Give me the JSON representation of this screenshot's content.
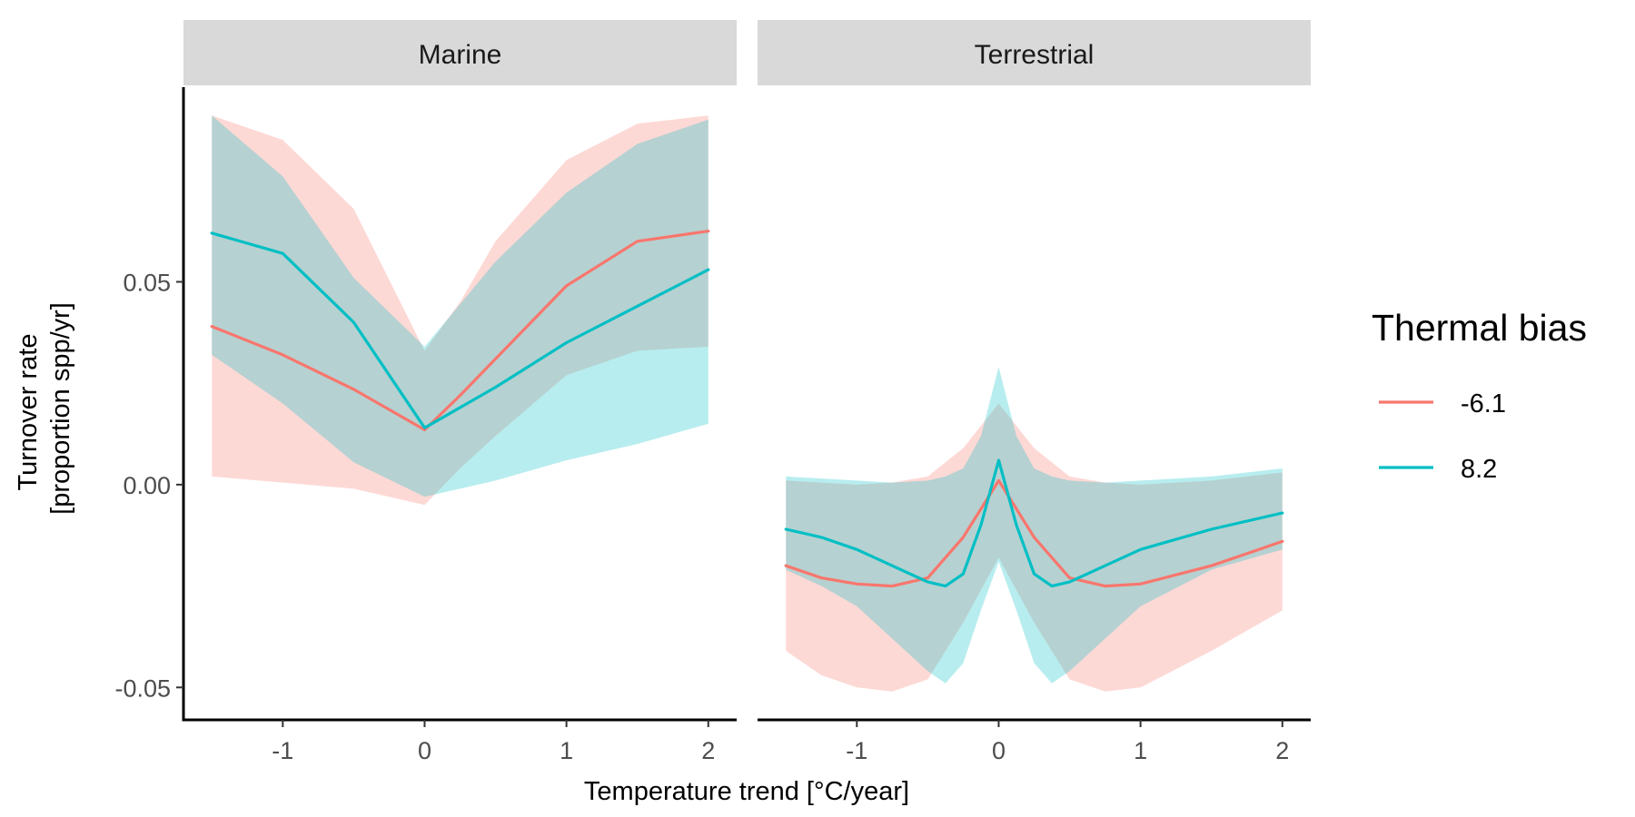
{
  "chart_data": {
    "type": "line",
    "facets": [
      {
        "name": "Marine",
        "series": [
          {
            "name": "-6.1",
            "x": [
              -1.5,
              -1.0,
              -0.5,
              0.0,
              0.25,
              0.5,
              1.0,
              1.5,
              2.0
            ],
            "y": [
              0.039,
              0.032,
              0.0235,
              0.0135,
              0.022,
              0.031,
              0.049,
              0.06,
              0.0625
            ],
            "lower": [
              0.002,
              0.0005,
              -0.001,
              -0.005,
              0.004,
              0.012,
              0.027,
              0.033,
              0.034
            ],
            "upper": [
              0.091,
              0.085,
              0.068,
              0.033,
              0.045,
              0.06,
              0.08,
              0.089,
              0.091
            ]
          },
          {
            "name": "8.2",
            "x": [
              -1.5,
              -1.0,
              -0.5,
              0.0,
              0.5,
              1.0,
              1.5,
              2.0
            ],
            "y": [
              0.062,
              0.057,
              0.04,
              0.014,
              0.024,
              0.035,
              0.044,
              0.053
            ],
            "lower": [
              0.032,
              0.02,
              0.0055,
              -0.003,
              0.001,
              0.006,
              0.01,
              0.015
            ],
            "upper": [
              0.091,
              0.076,
              0.051,
              0.034,
              0.055,
              0.072,
              0.084,
              0.09
            ]
          }
        ]
      },
      {
        "name": "Terrestrial",
        "series": [
          {
            "name": "-6.1",
            "x": [
              -1.5,
              -1.25,
              -1.0,
              -0.75,
              -0.5,
              -0.25,
              0.0,
              0.25,
              0.5,
              0.75,
              1.0,
              1.5,
              2.0
            ],
            "y": [
              -0.02,
              -0.023,
              -0.0245,
              -0.025,
              -0.023,
              -0.013,
              0.001,
              -0.013,
              -0.023,
              -0.025,
              -0.0245,
              -0.02,
              -0.014
            ],
            "lower": [
              -0.041,
              -0.047,
              -0.05,
              -0.051,
              -0.048,
              -0.034,
              -0.018,
              -0.034,
              -0.048,
              -0.051,
              -0.05,
              -0.041,
              -0.031
            ],
            "upper": [
              0.001,
              0.0005,
              0.0,
              0.0005,
              0.002,
              0.009,
              0.02,
              0.009,
              0.002,
              0.0005,
              0.0,
              0.001,
              0.003
            ]
          },
          {
            "name": "8.2",
            "x": [
              -1.5,
              -1.25,
              -1.0,
              -0.75,
              -0.5,
              -0.375,
              -0.25,
              -0.125,
              0.0,
              0.125,
              0.25,
              0.375,
              0.5,
              0.75,
              1.0,
              1.5,
              2.0
            ],
            "y": [
              -0.011,
              -0.013,
              -0.016,
              -0.02,
              -0.024,
              -0.025,
              -0.022,
              -0.01,
              0.006,
              -0.01,
              -0.022,
              -0.025,
              -0.024,
              -0.02,
              -0.016,
              -0.011,
              -0.007
            ],
            "lower": [
              -0.021,
              -0.025,
              -0.03,
              -0.038,
              -0.046,
              -0.049,
              -0.044,
              -0.031,
              -0.019,
              -0.031,
              -0.044,
              -0.049,
              -0.046,
              -0.038,
              -0.03,
              -0.021,
              -0.016
            ],
            "upper": [
              0.002,
              0.0015,
              0.001,
              0.0005,
              0.001,
              0.002,
              0.004,
              0.012,
              0.029,
              0.012,
              0.004,
              0.002,
              0.001,
              0.0005,
              0.001,
              0.002,
              0.004
            ]
          }
        ]
      }
    ],
    "xlabel": "Temperature trend [°C/year]",
    "ylabel": [
      "Turnover rate",
      "[proportion spp/yr]"
    ],
    "xlim": [
      -1.7,
      2.2
    ],
    "ylim": [
      -0.058,
      0.098
    ],
    "xticks": [
      -1,
      0,
      1,
      2
    ],
    "yticks": [
      -0.05,
      0.0,
      0.05
    ],
    "ytick_labels": [
      "-0.05",
      "0.00",
      "0.05"
    ],
    "xtick_labels": [
      "-1",
      "0",
      "1",
      "2"
    ],
    "grid": false,
    "legend": {
      "title": "Thermal bias",
      "placement": "right",
      "entries": [
        "-6.1",
        "8.2"
      ]
    },
    "colors": {
      "-6.1": "#F8766D",
      "8.2": "#00BFC4",
      "strip": "#d9d9d9"
    }
  }
}
